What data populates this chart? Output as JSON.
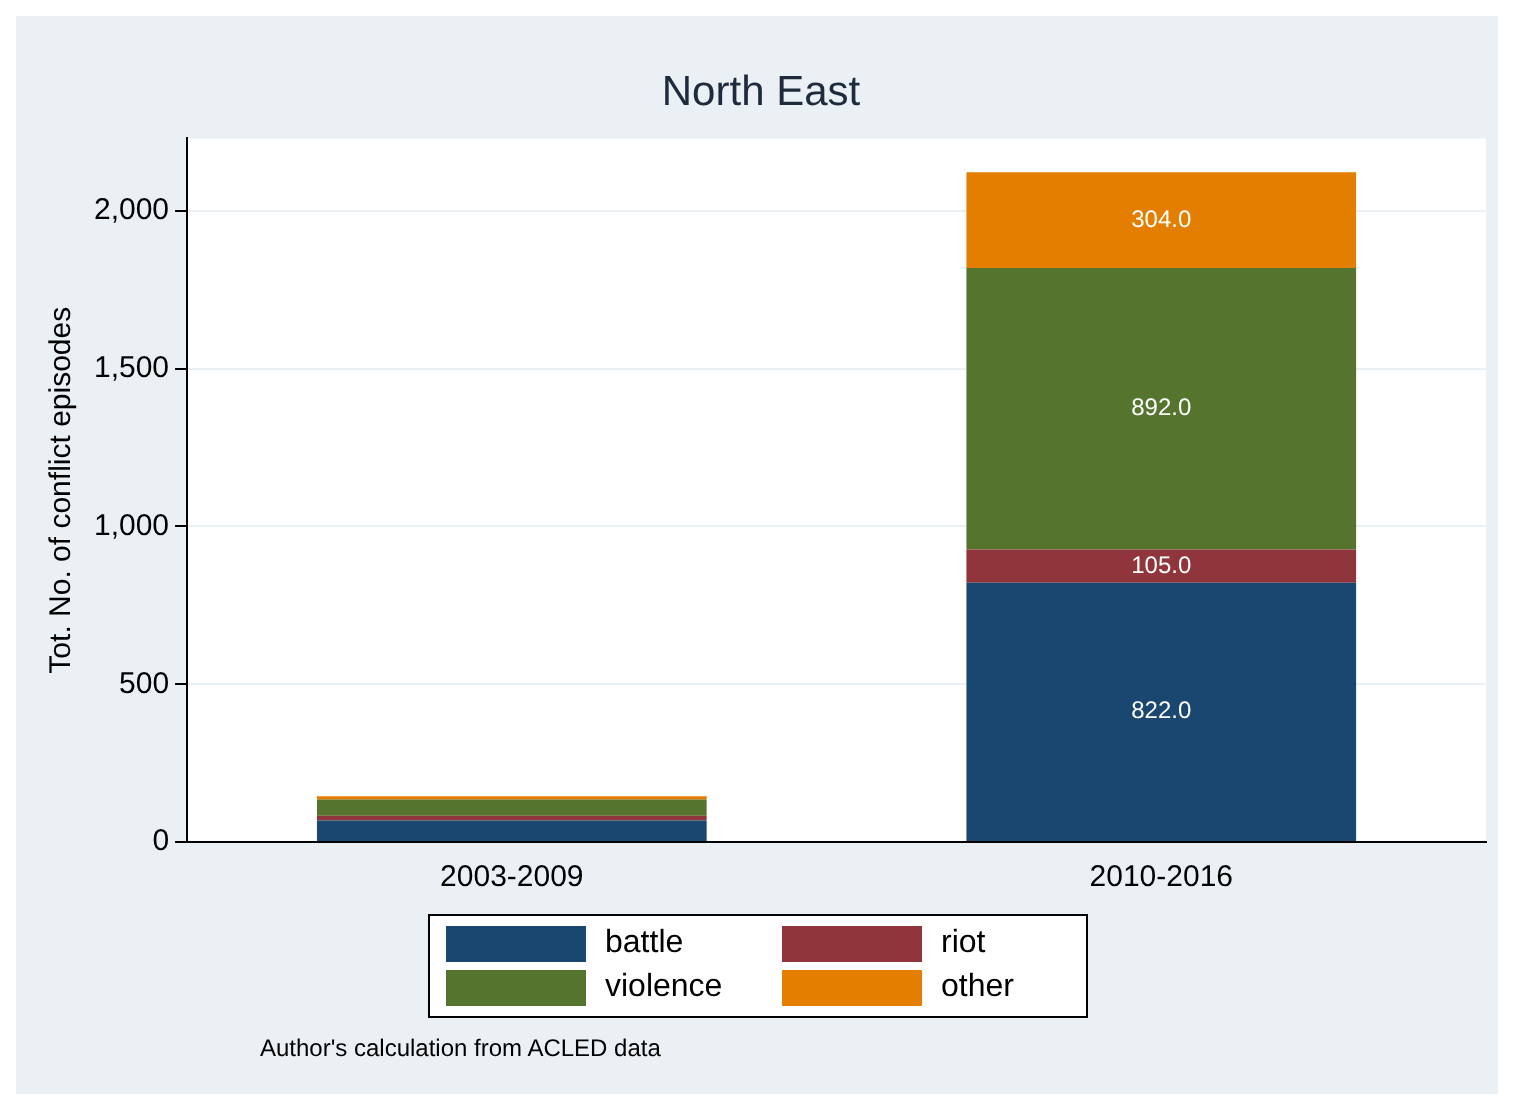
{
  "chart_data": {
    "type": "bar",
    "title": "North East",
    "ylabel": "Tot. No. of conflict episodes",
    "categories": [
      "2003-2009",
      "2010-2016"
    ],
    "stacked": true,
    "series": [
      {
        "name": "battle",
        "color": "#1a476f",
        "values": [
          68,
          822
        ],
        "value_labels": [
          null,
          "822.0"
        ]
      },
      {
        "name": "riot",
        "color": "#90353b",
        "values": [
          15,
          105
        ],
        "value_labels": [
          null,
          "105.0"
        ]
      },
      {
        "name": "violence",
        "color": "#55752f",
        "values": [
          52,
          892
        ],
        "value_labels": [
          null,
          "892.0"
        ]
      },
      {
        "name": "other",
        "color": "#e37e00",
        "values": [
          10,
          304
        ],
        "value_labels": [
          null,
          "304.0"
        ]
      }
    ],
    "ylim": [
      0,
      2230
    ],
    "yticks": [
      {
        "value": 0,
        "label": "0"
      },
      {
        "value": 500,
        "label": "500"
      },
      {
        "value": 1000,
        "label": "1,000"
      },
      {
        "value": 1500,
        "label": "1,500"
      },
      {
        "value": 2000,
        "label": "2,000"
      }
    ],
    "grid": "y",
    "legend": "bottom",
    "annotations": [
      "Author's calculation from ACLED data"
    ]
  }
}
